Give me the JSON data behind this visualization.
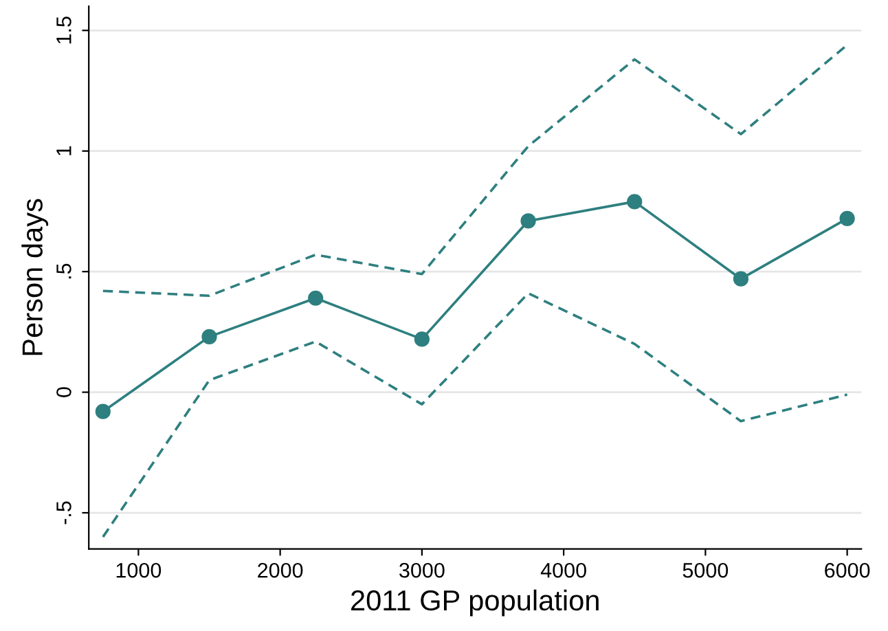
{
  "chart_data": {
    "type": "line",
    "xlabel": "2011 GP population",
    "ylabel": "Person days",
    "x": [
      750,
      1500,
      2250,
      3000,
      3750,
      4500,
      5250,
      6000
    ],
    "series": [
      {
        "color": "#2e7f7f",
        "marker": "circle",
        "line_style": "solid",
        "values": [
          -0.08,
          0.23,
          0.39,
          0.22,
          0.71,
          0.79,
          0.47,
          0.72
        ]
      },
      {
        "color": "#2e7f7f",
        "marker": "none",
        "line_style": "dashed",
        "values": [
          0.42,
          0.4,
          0.57,
          0.49,
          1.02,
          1.38,
          1.07,
          1.44
        ]
      },
      {
        "color": "#2e7f7f",
        "marker": "none",
        "line_style": "dashed",
        "values": [
          -0.6,
          0.05,
          0.21,
          -0.05,
          0.41,
          0.2,
          -0.12,
          -0.01
        ]
      }
    ],
    "xlim": [
      650,
      6100
    ],
    "ylim": [
      -0.65,
      1.6
    ],
    "xticks": [
      1000,
      2000,
      3000,
      4000,
      5000,
      6000
    ],
    "yticks": [
      {
        "value": -0.5,
        "label": "-.5"
      },
      0,
      {
        "value": 0.5,
        "label": ".5"
      },
      1,
      1.5
    ],
    "grid": "y",
    "legend": false
  }
}
